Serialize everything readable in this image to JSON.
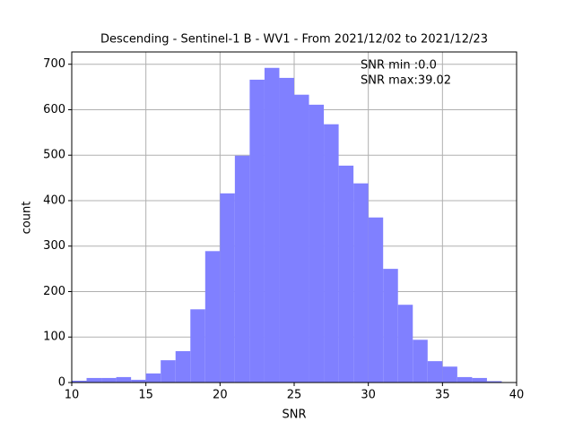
{
  "chart_data": {
    "type": "histogram",
    "title": "Descending - Sentinel-1 B - WV1 - From 2021/12/02 to 2021/12/23",
    "x_label": "SNR",
    "y_label": "count",
    "annotations": [
      "SNR min :0.0",
      "SNR max:39.02"
    ],
    "bins": [
      10,
      11,
      12,
      13,
      14,
      15,
      16,
      17,
      18,
      19,
      20,
      21,
      22,
      23,
      24,
      25,
      26,
      27,
      28,
      29,
      30,
      31,
      32,
      33,
      34,
      35,
      36,
      37,
      38,
      39
    ],
    "values": [
      4,
      10,
      10,
      12,
      6,
      20,
      49,
      69,
      161,
      289,
      416,
      499,
      666,
      692,
      670,
      633,
      611,
      568,
      477,
      438,
      363,
      250,
      171,
      94,
      47,
      35,
      12,
      10,
      3
    ],
    "color": "#8080ff",
    "xlim": [
      10,
      40
    ],
    "xticks": [
      10,
      15,
      20,
      25,
      30,
      35,
      40
    ],
    "ylim": [
      0,
      727
    ],
    "yticks": [
      0,
      100,
      200,
      300,
      400,
      500,
      600,
      700
    ],
    "grid": true
  }
}
